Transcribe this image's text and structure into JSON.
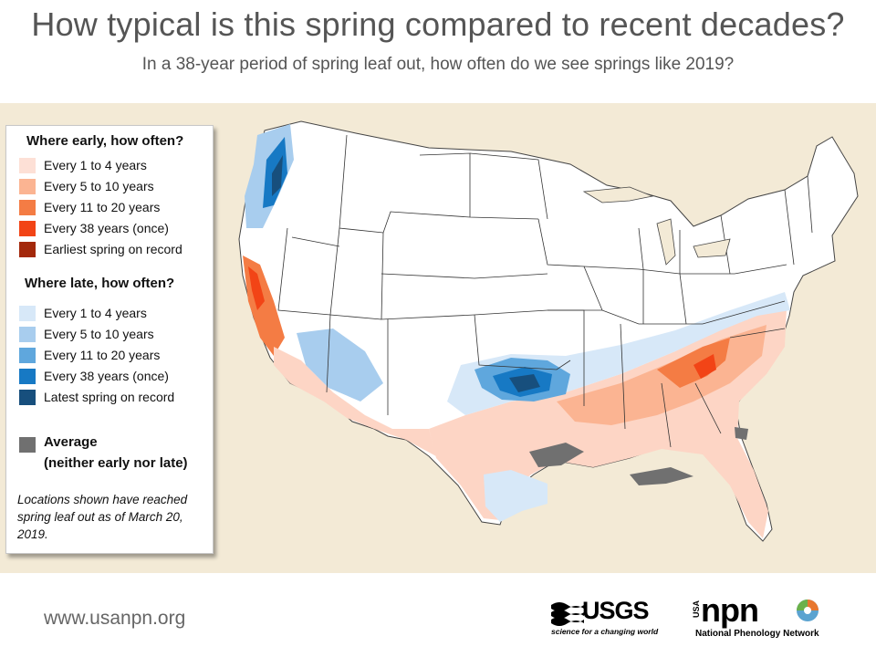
{
  "header": {
    "title": "How typical is this spring compared to recent decades?",
    "subtitle": "In a 38-year period of spring leaf out, how often do we see springs like 2019?"
  },
  "legend": {
    "early_heading": "Where early, how often?",
    "early_items": [
      {
        "label": "Every 1 to 4 years",
        "color": "#fde0d6"
      },
      {
        "label": "Every 5 to 10 years",
        "color": "#fbb492"
      },
      {
        "label": "Every 11 to 20 years",
        "color": "#f47c44"
      },
      {
        "label": "Every 38 years (once)",
        "color": "#f24416"
      },
      {
        "label": "Earliest spring on record",
        "color": "#a3280b"
      }
    ],
    "late_heading": "Where late, how often?",
    "late_items": [
      {
        "label": "Every 1 to 4 years",
        "color": "#d7e8f8"
      },
      {
        "label": "Every 5 to 10 years",
        "color": "#a8cdee"
      },
      {
        "label": "Every 11 to 20 years",
        "color": "#5fa7dd"
      },
      {
        "label": "Every 38 years (once)",
        "color": "#1779c4"
      },
      {
        "label": "Latest spring on record",
        "color": "#174f7d"
      }
    ],
    "average_label": "Average",
    "average_note": "(neither early nor late)",
    "average_color": "#707070",
    "footnote": "Locations shown have reached spring leaf out as of March 20, 2019."
  },
  "map": {
    "background_color": "#f3ead6"
  },
  "footer": {
    "website": "www.usanpn.org",
    "usgs_logo_text": "USGS",
    "usgs_tagline": "science for a changing world",
    "npn_logo_prefix": "USA",
    "npn_logo_text": "npn",
    "npn_tagline": "National Phenology Network"
  }
}
